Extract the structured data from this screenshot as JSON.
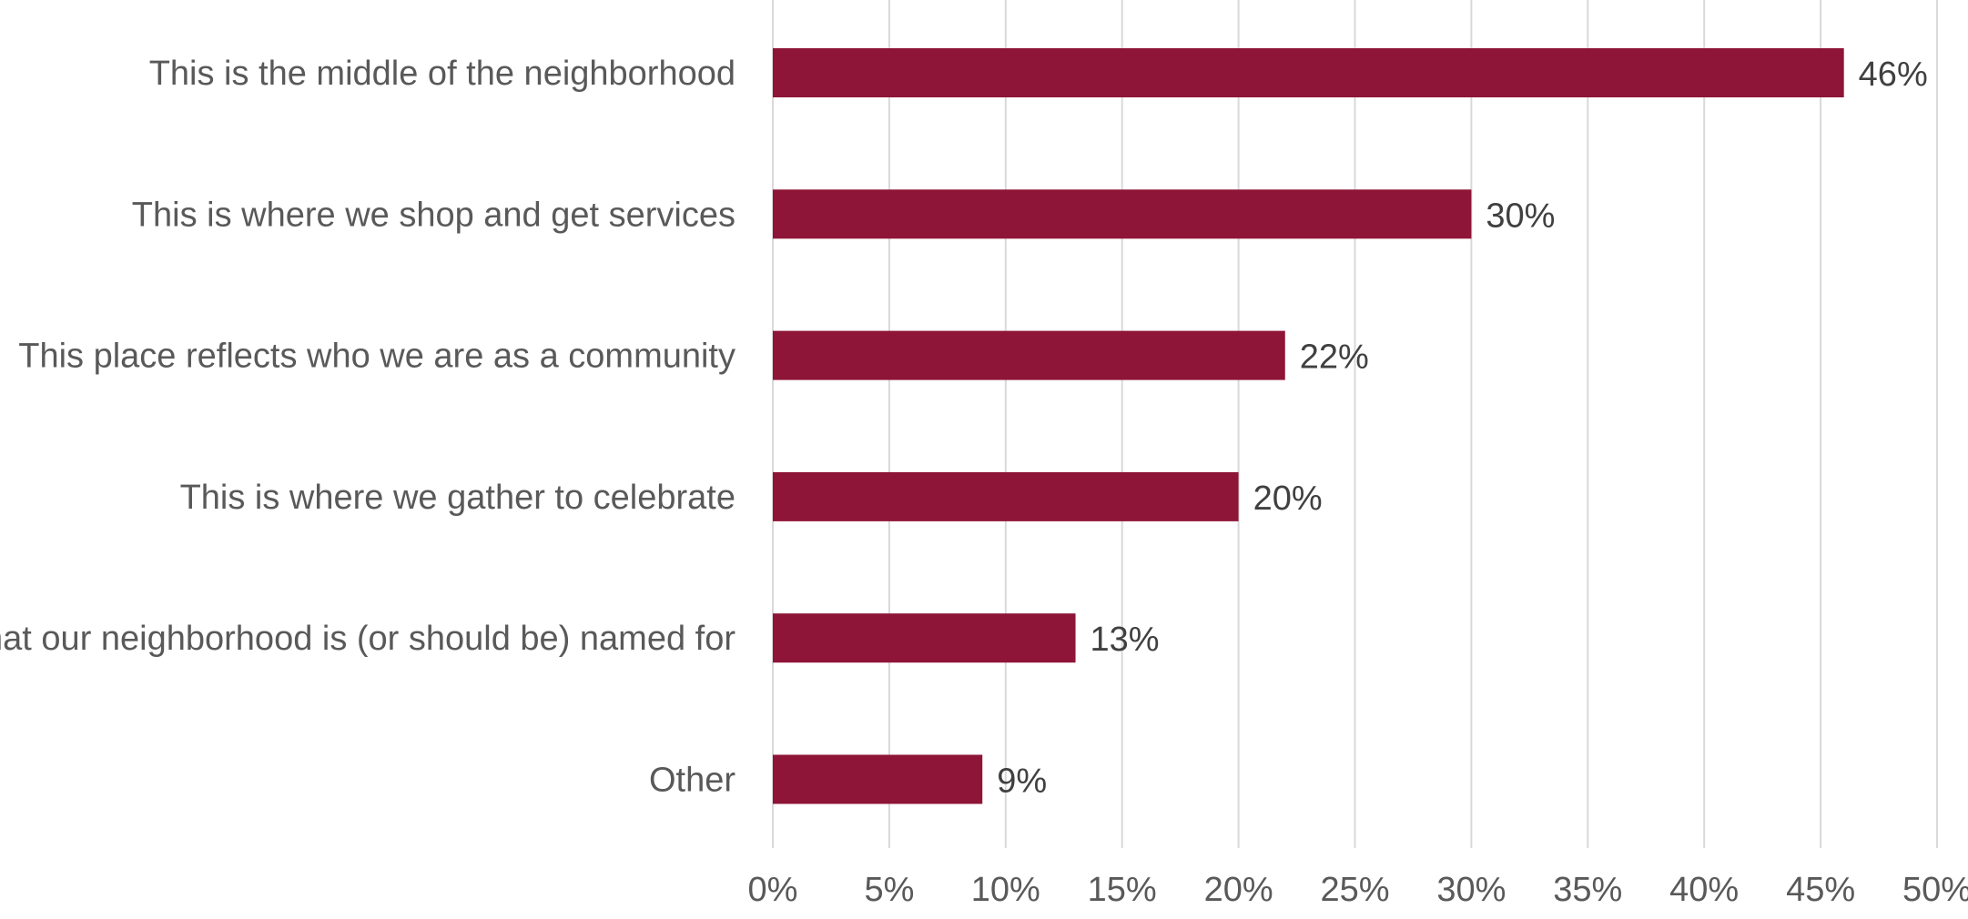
{
  "chart_data": {
    "type": "bar",
    "orientation": "horizontal",
    "categories": [
      "This is the middle of the neighborhood",
      "This is where we shop and get services",
      "This place reflects who we are as a community",
      "This is where we gather to celebrate",
      "This is what our neighborhood is (or should be) named for",
      "Other"
    ],
    "values": [
      46,
      30,
      22,
      20,
      13,
      9
    ],
    "value_labels": [
      "46%",
      "30%",
      "22%",
      "20%",
      "13%",
      "9%"
    ],
    "xlim": [
      0,
      50
    ],
    "x_ticks": [
      0,
      5,
      10,
      15,
      20,
      25,
      30,
      35,
      40,
      45,
      50
    ],
    "x_tick_labels": [
      "0%",
      "5%",
      "10%",
      "15%",
      "20%",
      "25%",
      "30%",
      "35%",
      "40%",
      "45%",
      "50%"
    ],
    "grid": "vertical",
    "legend": "none",
    "bar_color": "#8E1537",
    "grid_color": "#D9D9D9"
  }
}
